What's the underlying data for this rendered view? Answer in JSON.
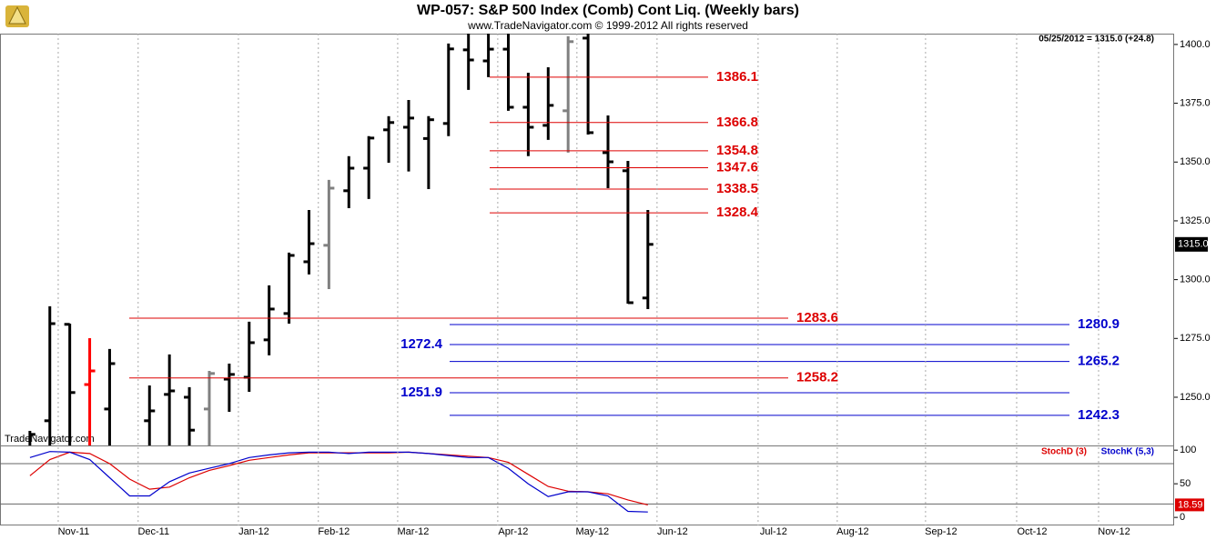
{
  "chart_data": [
    {
      "type": "ohlc",
      "title": "WP-057:  S&P 500 Index (Comb) Cont Liq.  (Weekly bars)",
      "subtitle": "www.TradeNavigator.com © 1999-2012 All rights reserved",
      "info": "05/25/2012 = 1315.0 (+24.8)",
      "watermark": "TradeNavigator.com",
      "open": [
        1222,
        1240,
        1281,
        1255.4,
        1245,
        null,
        1240,
        1251.2,
        1250,
        1245,
        1257.7,
        1258.5,
        1274.4,
        1285.6,
        1307.6,
        1314.6,
        1337.8,
        1347.4,
        1363.7,
        1364.8,
        1360,
        1366.4,
        1397.7,
        1393,
        1398,
        1373.3,
        1365.6,
        1371.8,
        1402.7,
        1354.0,
        1346.3,
        1292.2
      ],
      "high": [
        1235.7,
        1288.7,
        1281.3,
        1275.1,
        1270.5,
        null,
        1255.0,
        1268.2,
        1254.3,
        1261.2,
        1264.3,
        1282.1,
        1297.6,
        1311.5,
        1329.6,
        1342.4,
        1352.5,
        1361.0,
        1369.5,
        1376.4,
        1369.5,
        1400.4,
        1410,
        1410,
        1404.6,
        1388.0,
        1390.3,
        1403.5,
        1404.6,
        1369.8,
        1350.5,
        1329.6
      ],
      "low": [
        1220,
        1225,
        1225,
        1228,
        1225,
        null,
        1225,
        1228,
        1225,
        1228,
        1243.8,
        1252.3,
        1267.8,
        1281.3,
        1302.2,
        1296.0,
        1330.4,
        1334.3,
        1349.7,
        1346,
        1338.5,
        1361.0,
        1380.7,
        1386.1,
        1371.8,
        1352.5,
        1359.4,
        1354.0,
        1361.7,
        1338.9,
        1289.8,
        1287.5
      ],
      "close": [
        1234.2,
        1281.3,
        1252.0,
        1261.2,
        1264.3,
        null,
        1244.2,
        1252.7,
        1236,
        1260.1,
        1259.7,
        1273.2,
        1287.5,
        1310.3,
        1315.3,
        1338.9,
        1347.4,
        1360.2,
        1366.8,
        1368.7,
        1368,
        1398.1,
        1393.4,
        1398,
        1373.3,
        1364.8,
        1374.1,
        1401.2,
        1362.5,
        1350.1,
        1290.2,
        1315.0
      ],
      "bar_colors": [
        "#000000",
        "#000000",
        "#000000",
        "#ff0000",
        "#000000",
        "#000000",
        "#000000",
        "#000000",
        "#000000",
        "#808080",
        "#000000",
        "#000000",
        "#000000",
        "#000000",
        "#000000",
        "#808080",
        "#000000",
        "#000000",
        "#000000",
        "#000000",
        "#000000",
        "#000000",
        "#000000",
        "#000000",
        "#000000",
        "#000000",
        "#000000",
        "#808080",
        "#000000",
        "#000000",
        "#000000",
        "#000000"
      ],
      "xlim": [
        -1.5,
        57.4
      ],
      "ylim": [
        1229.5,
        1404.6
      ],
      "yticks": [
        {
          "value": 1250,
          "label": "1250.0"
        },
        {
          "value": 1275,
          "label": "1275.0"
        },
        {
          "value": 1300,
          "label": "1300.0"
        },
        {
          "value": 1325,
          "label": "1325.0"
        },
        {
          "value": 1350,
          "label": "1350.0"
        },
        {
          "value": 1375,
          "label": "1375.0"
        },
        {
          "value": 1400,
          "label": "1400.0"
        }
      ],
      "last_price": {
        "value": 1315.0,
        "label": "1315.0"
      },
      "red_levels_upper": [
        1386.1,
        1366.8,
        1354.8,
        1347.6,
        1338.5,
        1328.4
      ],
      "red_levels_lower": [
        1283.6,
        1258.2
      ],
      "blue_levels": [
        1280.9,
        1272.4,
        1265.2,
        1251.9,
        1242.3
      ],
      "blue_label_side": [
        "right",
        "left",
        "right",
        "left",
        "right"
      ],
      "red_color": "#dd0000",
      "blue_color": "#0000cc"
    },
    {
      "type": "line",
      "series": [
        {
          "name": "StochD (3)",
          "color": "#dd0000",
          "values": [
            62,
            86,
            97,
            95,
            80,
            57,
            42,
            45,
            59,
            70,
            77,
            85,
            89,
            93,
            96,
            96,
            96,
            96,
            96,
            97,
            95,
            93,
            91,
            89,
            82,
            64,
            46,
            39,
            38,
            35,
            26,
            18.59
          ]
        },
        {
          "name": "StochK (5,3)",
          "color": "#0000cc",
          "values": [
            89,
            98,
            97,
            86,
            59,
            32,
            32,
            53,
            66,
            73,
            80,
            89,
            93,
            96,
            97,
            97,
            95,
            97,
            97,
            97,
            95,
            92,
            89,
            89,
            73,
            50,
            31,
            38,
            38,
            32,
            9,
            8
          ]
        }
      ],
      "xlim": [
        -1.5,
        57.4
      ],
      "ylim": [
        -12,
        107
      ],
      "yticks": [
        0,
        50,
        100
      ],
      "levels": [
        80,
        20
      ],
      "xticks": [
        {
          "value": 1.42,
          "label": "Nov-11"
        },
        {
          "value": 5.43,
          "label": "Dec-11"
        },
        {
          "value": 10.46,
          "label": "Jan-12"
        },
        {
          "value": 14.47,
          "label": "Feb-12"
        },
        {
          "value": 18.45,
          "label": "Mar-12"
        },
        {
          "value": 23.47,
          "label": "Apr-12"
        },
        {
          "value": 27.44,
          "label": "May-12"
        },
        {
          "value": 31.46,
          "label": "Jun-12"
        },
        {
          "value": 36.53,
          "label": "Jul-12"
        },
        {
          "value": 40.5,
          "label": "Aug-12"
        },
        {
          "value": 44.93,
          "label": "Sep-12"
        },
        {
          "value": 49.5,
          "label": "Oct-12"
        },
        {
          "value": 53.61,
          "label": "Nov-12"
        }
      ]
    }
  ]
}
